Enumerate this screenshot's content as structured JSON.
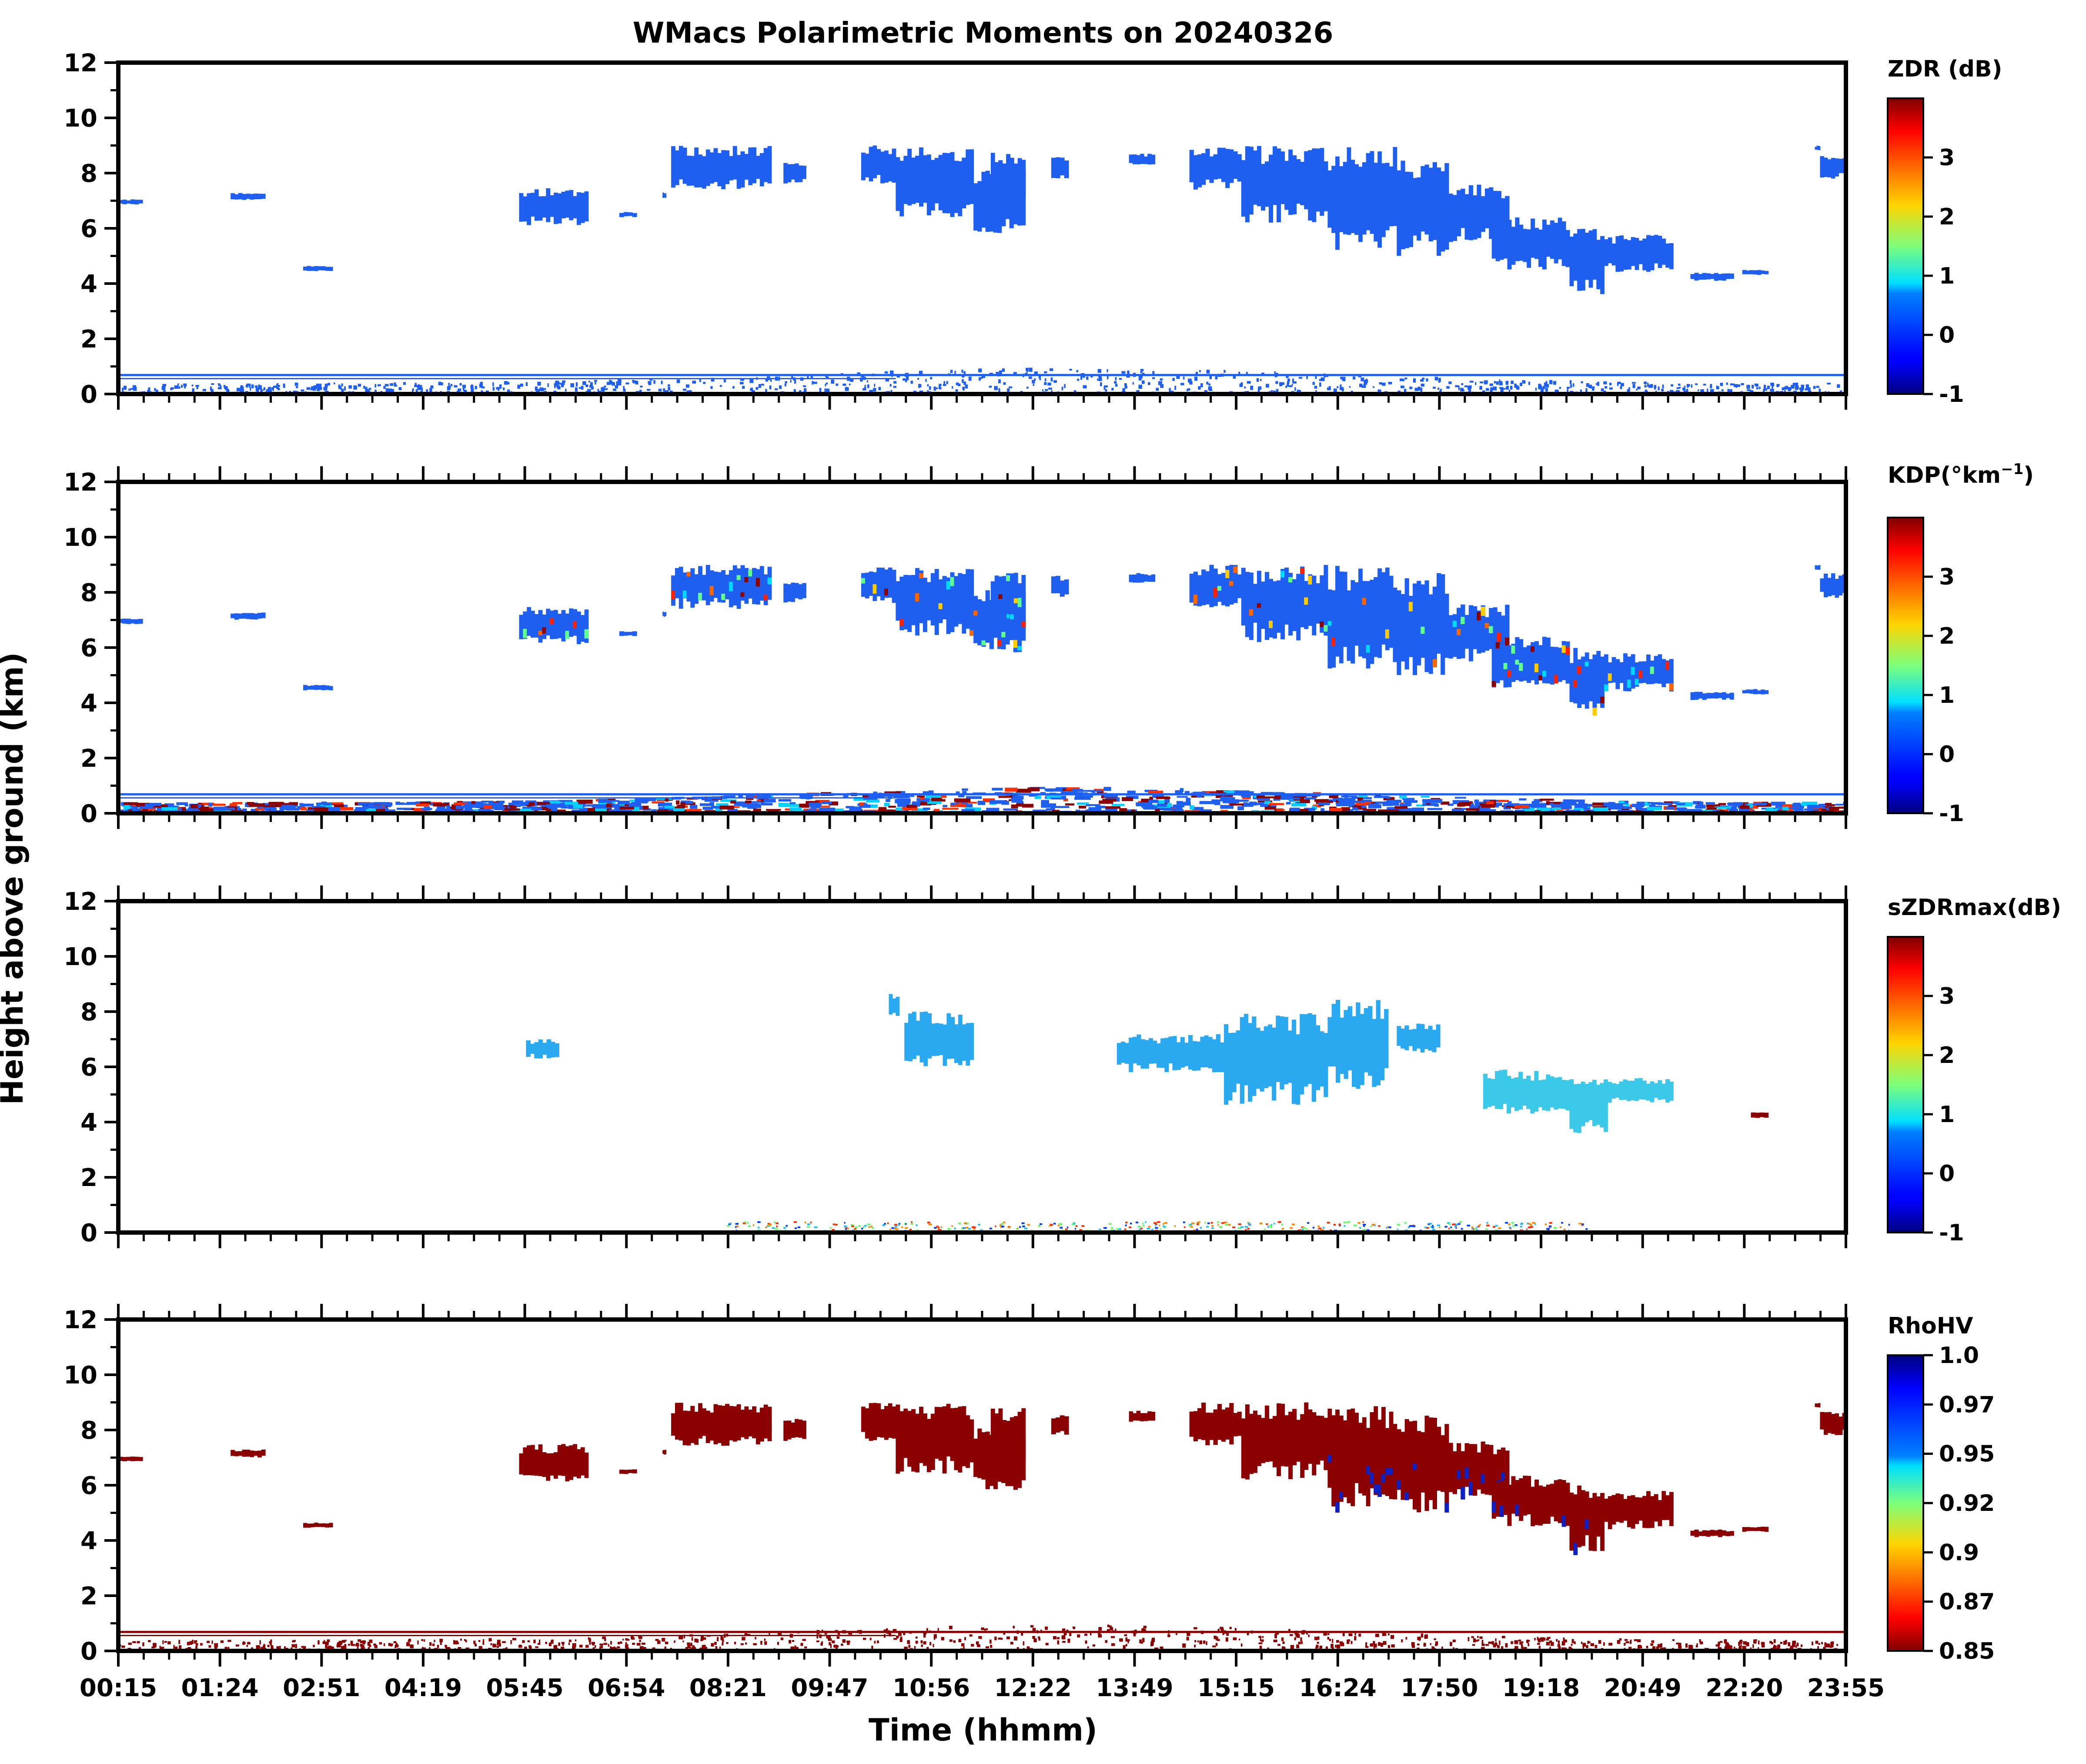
{
  "figure": {
    "title": "WMacs Polarimetric Moments on 20240326",
    "ylabel": "Height above ground (km)",
    "xlabel": "Time (hhmm)"
  },
  "chart_data": [
    {
      "type": "heatmap",
      "name": "ZDR",
      "colorbar_label": "ZDR (dB)",
      "colorbar_ticks": [
        "3",
        "2",
        "1",
        "0",
        "-1"
      ],
      "colormap": "jet",
      "vrange": [
        -1,
        4
      ],
      "ylim": [
        0,
        12
      ],
      "yticks": [
        "0",
        "2",
        "4",
        "6",
        "8",
        "10",
        "12"
      ],
      "dominant_color": "#1e5ff0"
    },
    {
      "type": "heatmap",
      "name": "KDP",
      "colorbar_label_base": "KDP(°km",
      "colorbar_label_sup": "−1",
      "colorbar_label_end": ")",
      "colorbar_ticks": [
        "3",
        "2",
        "1",
        "0",
        "-1"
      ],
      "colormap": "jet",
      "vrange": [
        -1,
        4
      ],
      "ylim": [
        0,
        12
      ],
      "yticks": [
        "0",
        "2",
        "4",
        "6",
        "8",
        "10",
        "12"
      ],
      "dominant_color": "#1e5ff0"
    },
    {
      "type": "heatmap",
      "name": "sZDRmax",
      "colorbar_label": "sZDRmax(dB)",
      "colorbar_ticks": [
        "3",
        "2",
        "1",
        "0",
        "-1"
      ],
      "colormap": "jet",
      "vrange": [
        -1,
        4
      ],
      "ylim": [
        0,
        12
      ],
      "yticks": [
        "0",
        "2",
        "4",
        "6",
        "8",
        "10",
        "12"
      ],
      "dominant_color": "#2aa8f0"
    },
    {
      "type": "heatmap",
      "name": "RhoHV",
      "colorbar_label": "RhoHV",
      "colorbar_ticks": [
        "1.0",
        "0.97",
        "0.95",
        "0.92",
        "0.9",
        "0.87",
        "0.85"
      ],
      "colormap": "jet_r",
      "vrange": [
        0.85,
        1.0
      ],
      "ylim": [
        0,
        12
      ],
      "yticks": [
        "0",
        "2",
        "4",
        "6",
        "8",
        "10",
        "12"
      ],
      "dominant_color": "#8b0000"
    }
  ],
  "xaxis": {
    "tick_labels": [
      "00:15",
      "01:24",
      "02:51",
      "04:19",
      "05:45",
      "06:54",
      "08:21",
      "09:47",
      "10:56",
      "12:22",
      "13:49",
      "15:15",
      "16:24",
      "17:50",
      "19:18",
      "20:49",
      "22:20",
      "23:55"
    ]
  },
  "colors": {
    "axis": "#000000",
    "background": "#ffffff"
  }
}
